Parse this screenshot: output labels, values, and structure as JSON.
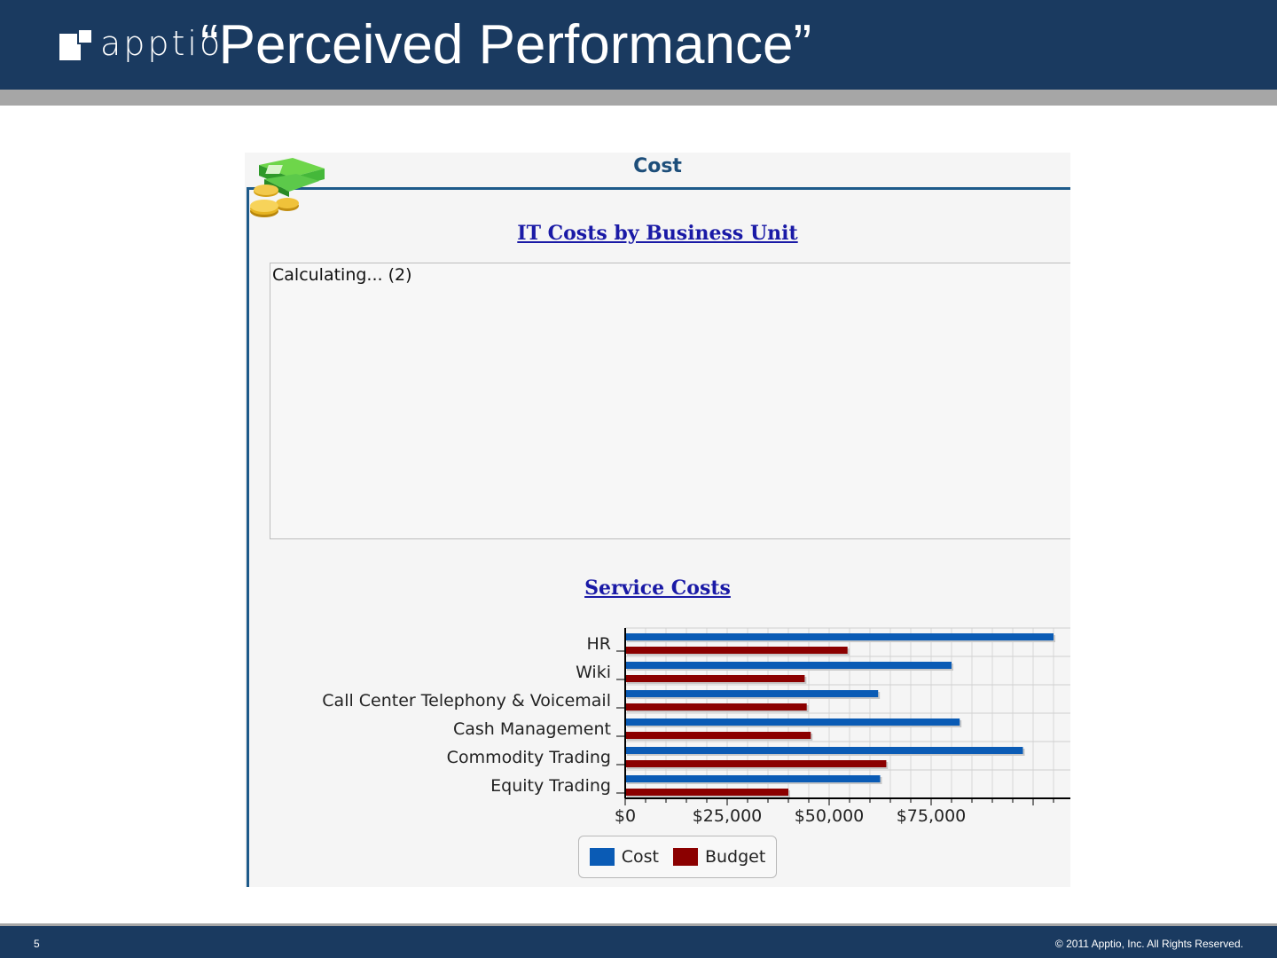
{
  "slide": {
    "logo_text": "apptio",
    "title": "“Perceived Performance”",
    "page_number": "5",
    "copyright": "© 2011 Apptio, Inc. All Rights Reserved."
  },
  "panel": {
    "title": "Cost",
    "icon": "money-stack-coins-icon",
    "section1_title": "IT Costs by Business Unit",
    "calculating_text": "Calculating... (2)",
    "section2_title": "Service Costs"
  },
  "colors": {
    "header_bg": "#1a3a60",
    "rule_gray": "#a6a6a6",
    "cost": "#0a5bb5",
    "budget": "#8b0000"
  },
  "chart_data": {
    "type": "bar",
    "orientation": "horizontal",
    "title": "Service Costs",
    "categories": [
      "HR",
      "Wiki",
      "Call Center Telephony & Voicemail",
      "Cash Management",
      "Commodity Trading",
      "Equity Trading"
    ],
    "series": [
      {
        "name": "Cost",
        "values": [
          105000,
          80000,
          62000,
          82000,
          97500,
          62500
        ]
      },
      {
        "name": "Budget",
        "values": [
          54500,
          44000,
          44500,
          45500,
          64000,
          40000
        ]
      }
    ],
    "x_ticks": [
      "$0",
      "$25,000",
      "$50,000",
      "$75,000"
    ],
    "xlim": [
      0,
      110000
    ],
    "grid": true,
    "legend": [
      "Cost",
      "Budget"
    ],
    "legend_position": "bottom"
  }
}
